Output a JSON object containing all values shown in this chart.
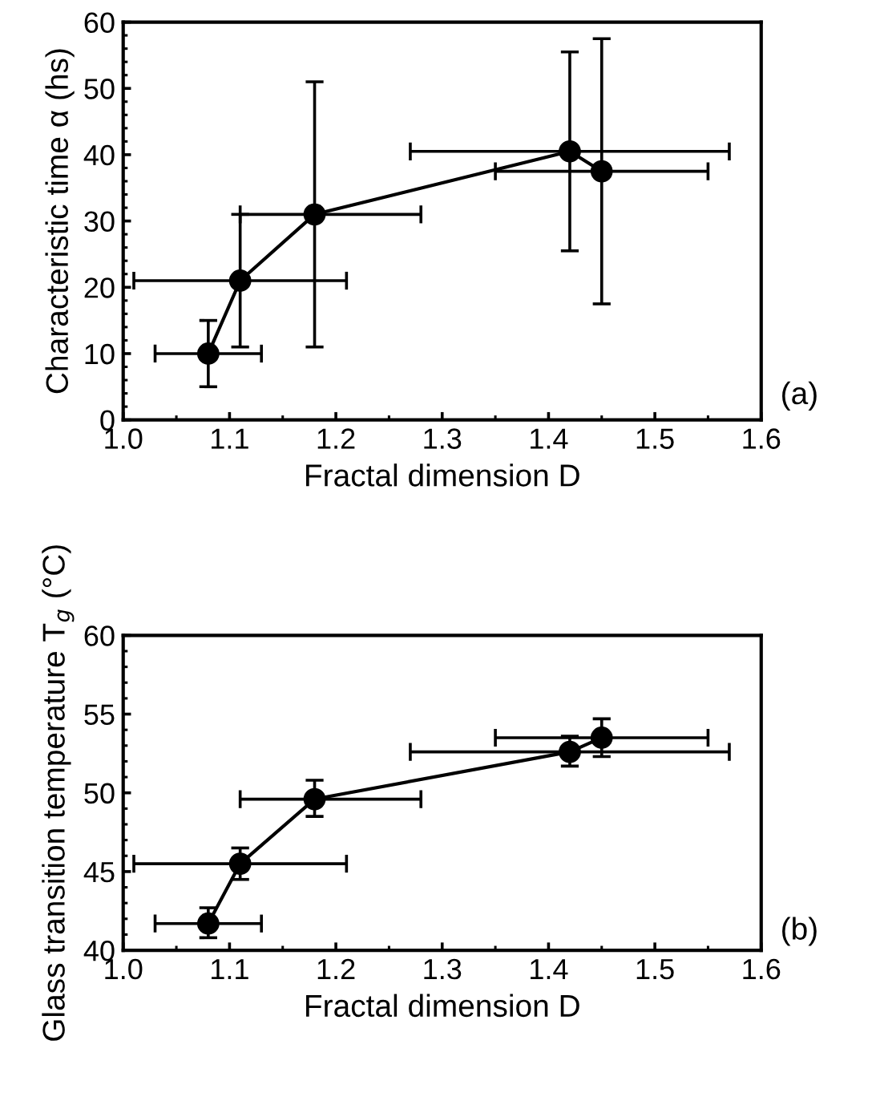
{
  "chart_data": [
    {
      "type": "line",
      "xlabel": "Fractal dimension D",
      "ylabel": "Characteristic time α (hs)",
      "annotations": [
        "(a)"
      ],
      "series": [
        {
          "color": "#000000",
          "x": [
            1.08,
            1.11,
            1.18,
            1.42,
            1.45
          ],
          "values": [
            10,
            21,
            31,
            40.5,
            37.5
          ],
          "errors": [
            [
              5,
              15
            ],
            [
              11,
              31
            ],
            [
              11,
              51
            ],
            [
              25.5,
              55.5
            ],
            [
              17.5,
              57.5
            ]
          ],
          "xerrors": [
            [
              1.03,
              1.13
            ],
            [
              1.01,
              1.21
            ],
            [
              1.11,
              1.28
            ],
            [
              1.27,
              1.57
            ],
            [
              1.35,
              1.55
            ]
          ]
        }
      ],
      "xlim": [
        1.0,
        1.6
      ],
      "xticks": [
        {
          "value": 1.0,
          "label": "1.0"
        },
        1.1,
        1.2,
        1.3,
        1.4,
        1.5,
        1.6
      ],
      "ylim": [
        0,
        60
      ],
      "yticks": [
        0,
        10,
        20,
        30,
        40,
        50,
        60
      ],
      "marker": "circle",
      "line_style": "solid",
      "grid": false,
      "legend": false
    },
    {
      "type": "line",
      "xlabel": "Fractal dimension D",
      "ylabel": "Glass transition temperature T$_{g}$ (°C)",
      "annotations": [
        "(b)"
      ],
      "series": [
        {
          "color": "#000000",
          "x": [
            1.08,
            1.11,
            1.18,
            1.42,
            1.45
          ],
          "values": [
            41.7,
            45.5,
            49.6,
            52.6,
            53.5
          ],
          "errors": [
            [
              40.8,
              42.7
            ],
            [
              44.5,
              46.5
            ],
            [
              48.5,
              50.8
            ],
            [
              51.7,
              53.6
            ],
            [
              52.3,
              54.7
            ]
          ],
          "xerrors": [
            [
              1.03,
              1.13
            ],
            [
              1.01,
              1.21
            ],
            [
              1.11,
              1.28
            ],
            [
              1.27,
              1.57
            ],
            [
              1.35,
              1.55
            ]
          ]
        }
      ],
      "xlim": [
        1.0,
        1.6
      ],
      "xticks": [
        {
          "value": 1.0,
          "label": "1.0"
        },
        1.1,
        1.2,
        1.3,
        1.4,
        1.5,
        1.6
      ],
      "ylim": [
        40,
        60
      ],
      "yticks": [
        40,
        45,
        50,
        55,
        60
      ],
      "marker": "circle",
      "line_style": "solid",
      "grid": false,
      "legend": false
    }
  ]
}
